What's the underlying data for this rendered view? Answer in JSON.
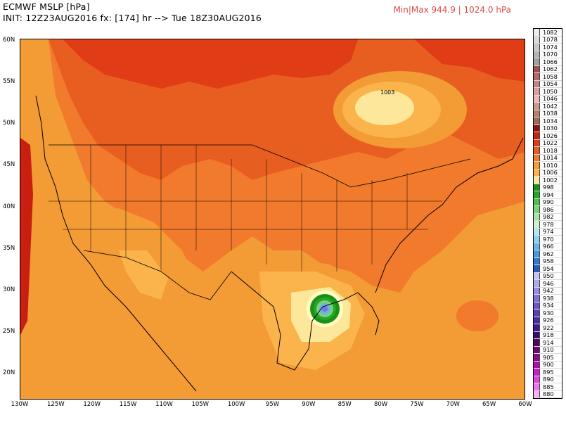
{
  "header": {
    "title": "ECMWF MSLP [hPa]",
    "init": "INIT: 12Z23AUG2016 fx: [174] hr --> Tue 18Z30AUG2016",
    "minmax": "Min|Max 944.9 | 1024.0 hPa"
  },
  "map": {
    "lat_labels": [
      "60N",
      "55N",
      "50N",
      "45N",
      "40N",
      "35N",
      "30N",
      "25N",
      "20N"
    ],
    "lon_labels": [
      "130W",
      "125W",
      "120W",
      "115W",
      "110W",
      "105W",
      "100W",
      "95W",
      "90W",
      "85W",
      "80W",
      "75W",
      "70W",
      "65W",
      "60W"
    ],
    "center_label": "1003",
    "colors": {
      "ocean_1010": "#f39b35",
      "mid_1014": "#f17a2c",
      "high_1018": "#e85e21",
      "high_1022": "#e03c16",
      "high_1026": "#c81f10",
      "low_1006": "#fbb44b",
      "low_1002": "#fde79a",
      "low_998": "#ffffc0",
      "storm_green": "#1f9e2d",
      "storm_core": "#8a78d6"
    }
  },
  "legend": {
    "items": [
      {
        "label": "1082",
        "color": "#eeeeee"
      },
      {
        "label": "1078",
        "color": "#dcdcdc"
      },
      {
        "label": "1074",
        "color": "#c8c8c8"
      },
      {
        "label": "1070",
        "color": "#b4b4b4"
      },
      {
        "label": "1066",
        "color": "#a0a0a0"
      },
      {
        "label": "1062",
        "color": "#a05050"
      },
      {
        "label": "1058",
        "color": "#b46a6a"
      },
      {
        "label": "1054",
        "color": "#c88484"
      },
      {
        "label": "1050",
        "color": "#dca0a0"
      },
      {
        "label": "1046",
        "color": "#e8baba"
      },
      {
        "label": "1042",
        "color": "#c89a8a"
      },
      {
        "label": "1038",
        "color": "#b48070"
      },
      {
        "label": "1034",
        "color": "#a06a5a"
      },
      {
        "label": "1030",
        "color": "#8c1010"
      },
      {
        "label": "1026",
        "color": "#c81f10"
      },
      {
        "label": "1022",
        "color": "#e03c16"
      },
      {
        "label": "1018",
        "color": "#e85e21"
      },
      {
        "label": "1014",
        "color": "#f17a2c"
      },
      {
        "label": "1010",
        "color": "#f39b35"
      },
      {
        "label": "1006",
        "color": "#fbb44b"
      },
      {
        "label": "1002",
        "color": "#fde79a"
      },
      {
        "label": "998",
        "color": "#1a8f1a"
      },
      {
        "label": "994",
        "color": "#27a727"
      },
      {
        "label": "990",
        "color": "#4cc04c"
      },
      {
        "label": "986",
        "color": "#7ad27a"
      },
      {
        "label": "982",
        "color": "#a6e3a6"
      },
      {
        "label": "978",
        "color": "#cdf2cd"
      },
      {
        "label": "974",
        "color": "#b4e6f5"
      },
      {
        "label": "970",
        "color": "#8cd3ef"
      },
      {
        "label": "966",
        "color": "#64b5e8"
      },
      {
        "label": "962",
        "color": "#4898e0"
      },
      {
        "label": "958",
        "color": "#3478d4"
      },
      {
        "label": "954",
        "color": "#2a5cc0"
      },
      {
        "label": "950",
        "color": "#c4c4f0"
      },
      {
        "label": "946",
        "color": "#b0a8ec"
      },
      {
        "label": "942",
        "color": "#9a8ce4"
      },
      {
        "label": "938",
        "color": "#8470d8"
      },
      {
        "label": "934",
        "color": "#6e56cc"
      },
      {
        "label": "930",
        "color": "#5a3ebc"
      },
      {
        "label": "926",
        "color": "#4a2aa8"
      },
      {
        "label": "922",
        "color": "#3c1a94"
      },
      {
        "label": "918",
        "color": "#3a0c6e"
      },
      {
        "label": "914",
        "color": "#50085c"
      },
      {
        "label": "910",
        "color": "#6a0a6a"
      },
      {
        "label": "905",
        "color": "#8a0a8a"
      },
      {
        "label": "900",
        "color": "#aa10aa"
      },
      {
        "label": "895",
        "color": "#c820c8"
      },
      {
        "label": "890",
        "color": "#dc44dc"
      },
      {
        "label": "885",
        "color": "#ec78ec"
      },
      {
        "label": "880",
        "color": "#f8b0f8"
      }
    ]
  }
}
